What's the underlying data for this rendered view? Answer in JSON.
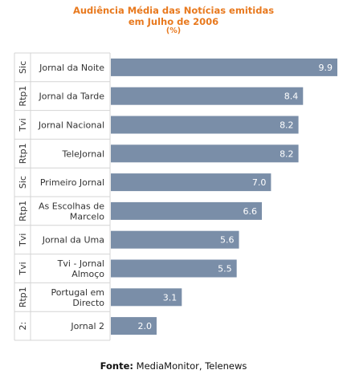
{
  "chart_data": {
    "type": "bar",
    "orientation": "horizontal",
    "title": "Audiência Média das Notícias emitidas",
    "title_line2": "em Julho de 2006",
    "subtitle": "(%)",
    "categories": [
      {
        "group": "Sic",
        "label": [
          "Jornal da Noite"
        ]
      },
      {
        "group": "Rtp1",
        "label": [
          "Jornal da Tarde"
        ]
      },
      {
        "group": "Tvi",
        "label": [
          "Jornal Nacional"
        ]
      },
      {
        "group": "Rtp1",
        "label": [
          "TeleJornal"
        ]
      },
      {
        "group": "Sic",
        "label": [
          "Primeiro Jornal"
        ]
      },
      {
        "group": "Rtp1",
        "label": [
          "As Escolhas de",
          "Marcelo"
        ]
      },
      {
        "group": "Tvi",
        "label": [
          "Jornal da Uma"
        ]
      },
      {
        "group": "Tvi",
        "label": [
          "Tvi - Jornal",
          "Almoço"
        ]
      },
      {
        "group": "Rtp1",
        "label": [
          "Portugal em",
          "Directo"
        ]
      },
      {
        "group": "2:",
        "label": [
          "Jornal 2"
        ]
      }
    ],
    "values": [
      9.9,
      8.4,
      8.2,
      8.2,
      7.0,
      6.6,
      5.6,
      5.5,
      3.1,
      2.0
    ],
    "value_labels": [
      "9.9",
      "8.4",
      "8.2",
      "8.2",
      "7.0",
      "6.6",
      "5.6",
      "5.5",
      "3.1",
      "2.0"
    ],
    "xlim": [
      0,
      10
    ],
    "grid": false,
    "bar_color": "#7a8ea8",
    "value_label_color": "#ffffff",
    "title_color": "#e8791e",
    "separator_color": "#d4d4d4"
  },
  "footer": {
    "label": "Fonte:",
    "text": "MediaMonitor, Telenews"
  }
}
